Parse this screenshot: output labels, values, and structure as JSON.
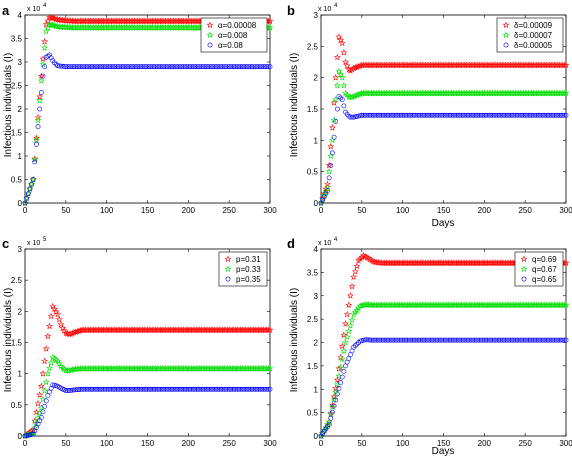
{
  "chart_data": [
    {
      "panel": "a",
      "type": "scatter",
      "xlabel": "",
      "ylabel": "Infectious individuals (I)",
      "xlim": [
        0,
        300
      ],
      "ylim": [
        0,
        40000
      ],
      "xticks": [
        0,
        50,
        100,
        150,
        200,
        250,
        300
      ],
      "yticks": [
        0,
        5000,
        10000,
        15000,
        20000,
        25000,
        30000,
        35000,
        40000
      ],
      "ytick_labels": [
        "0",
        "0.5",
        "1",
        "1.5",
        "2",
        "2.5",
        "3",
        "3.5",
        "4"
      ],
      "exponent_label": "x 10",
      "exponent_power": "4",
      "grid": false,
      "legend_position": "top-right",
      "marker_step": 2,
      "series": [
        {
          "name": "α=0.00008",
          "color": "#ff0000",
          "marker": "star",
          "x": [
            0,
            10,
            20,
            26,
            30,
            35,
            40,
            50,
            60,
            80,
            300
          ],
          "y": [
            0,
            5000,
            27000,
            38000,
            39500,
            39300,
            39000,
            38800,
            38700,
            38700,
            38700
          ]
        },
        {
          "name": "α=0.008",
          "color": "#00dd00",
          "marker": "star",
          "x": [
            0,
            10,
            20,
            26,
            30,
            35,
            40,
            50,
            60,
            80,
            300
          ],
          "y": [
            0,
            5000,
            26000,
            36500,
            38000,
            37800,
            37500,
            37400,
            37300,
            37300,
            37300
          ]
        },
        {
          "name": "α=0.08",
          "color": "#0000ff",
          "marker": "circle",
          "x": [
            0,
            10,
            18,
            22,
            26,
            30,
            35,
            40,
            50,
            60,
            80,
            300
          ],
          "y": [
            0,
            5000,
            20000,
            27000,
            31000,
            31500,
            30000,
            29200,
            29000,
            29000,
            29000,
            29000
          ]
        }
      ]
    },
    {
      "panel": "b",
      "type": "scatter",
      "xlabel": "Days",
      "ylabel": "Infectious individuals (I)",
      "xlim": [
        0,
        300
      ],
      "ylim": [
        0,
        30000
      ],
      "xticks": [
        0,
        50,
        100,
        150,
        200,
        250,
        300
      ],
      "yticks": [
        0,
        5000,
        10000,
        15000,
        20000,
        25000,
        30000
      ],
      "ytick_labels": [
        "0",
        "0.5",
        "1",
        "1.5",
        "2",
        "2.5",
        "3"
      ],
      "exponent_label": "x 10",
      "exponent_power": "4",
      "grid": false,
      "legend_position": "top-right",
      "marker_step": 2,
      "series": [
        {
          "name": "δ=0.00009",
          "color": "#ff0000",
          "marker": "star",
          "x": [
            0,
            8,
            14,
            18,
            22,
            26,
            30,
            35,
            40,
            50,
            60,
            300
          ],
          "y": [
            0,
            3000,
            12000,
            20000,
            26500,
            25500,
            22500,
            21000,
            21500,
            22000,
            22000,
            22000
          ]
        },
        {
          "name": "δ=0.00007",
          "color": "#00dd00",
          "marker": "star",
          "x": [
            0,
            8,
            14,
            18,
            22,
            26,
            30,
            35,
            40,
            50,
            60,
            300
          ],
          "y": [
            0,
            2500,
            10000,
            16500,
            21000,
            20000,
            17500,
            16800,
            17000,
            17500,
            17500,
            17500
          ]
        },
        {
          "name": "δ=0.00005",
          "color": "#0000ff",
          "marker": "circle",
          "x": [
            0,
            8,
            14,
            18,
            22,
            26,
            30,
            35,
            40,
            50,
            60,
            300
          ],
          "y": [
            0,
            2000,
            8000,
            13000,
            17000,
            16500,
            14500,
            13700,
            13700,
            14000,
            14000,
            14000
          ]
        }
      ]
    },
    {
      "panel": "c",
      "type": "scatter",
      "xlabel": "",
      "ylabel": "Infectious individuals (I)",
      "xlim": [
        0,
        300
      ],
      "ylim": [
        0,
        300000
      ],
      "xticks": [
        0,
        50,
        100,
        150,
        200,
        250,
        300
      ],
      "yticks": [
        0,
        50000,
        100000,
        150000,
        200000,
        250000,
        300000
      ],
      "ytick_labels": [
        "0",
        "0.5",
        "1",
        "1.5",
        "2",
        "2.5",
        "3"
      ],
      "exponent_label": "x 10",
      "exponent_power": "5",
      "grid": false,
      "legend_position": "top-right",
      "marker_step": 2,
      "series": [
        {
          "name": "p=0.31",
          "color": "#ff0000",
          "marker": "star",
          "x": [
            0,
            10,
            20,
            28,
            34,
            40,
            45,
            50,
            55,
            60,
            70,
            80,
            300
          ],
          "y": [
            0,
            10000,
            80000,
            160000,
            208000,
            195000,
            175000,
            165000,
            163000,
            166000,
            170000,
            170000,
            170000
          ]
        },
        {
          "name": "p=0.33",
          "color": "#00dd00",
          "marker": "star",
          "x": [
            0,
            10,
            20,
            28,
            34,
            40,
            45,
            50,
            55,
            60,
            70,
            80,
            300
          ],
          "y": [
            0,
            5000,
            45000,
            100000,
            126000,
            120000,
            110000,
            105000,
            105000,
            107000,
            108000,
            108000,
            108000
          ]
        },
        {
          "name": "p=0.35",
          "color": "#0000ff",
          "marker": "circle",
          "x": [
            0,
            10,
            20,
            28,
            34,
            40,
            45,
            50,
            55,
            60,
            70,
            80,
            300
          ],
          "y": [
            0,
            3000,
            30000,
            65000,
            82000,
            80000,
            76000,
            73000,
            73000,
            74000,
            75000,
            75000,
            75000
          ]
        }
      ]
    },
    {
      "panel": "d",
      "type": "scatter",
      "xlabel": "Days",
      "ylabel": "Infectious individuals (I)",
      "xlim": [
        0,
        300
      ],
      "ylim": [
        0,
        40000
      ],
      "xticks": [
        0,
        50,
        100,
        150,
        200,
        250,
        300
      ],
      "yticks": [
        0,
        5000,
        10000,
        15000,
        20000,
        25000,
        30000,
        35000,
        40000
      ],
      "ytick_labels": [
        "0",
        "0.5",
        "1",
        "1.5",
        "2",
        "2.5",
        "3",
        "3.5",
        "4"
      ],
      "exponent_label": "x 10",
      "exponent_power": "4",
      "grid": false,
      "legend_position": "top-right",
      "marker_step": 2,
      "series": [
        {
          "name": "q=0.69",
          "color": "#ff0000",
          "marker": "star",
          "x": [
            0,
            10,
            20,
            30,
            40,
            46,
            52,
            58,
            65,
            75,
            90,
            300
          ],
          "y": [
            0,
            3000,
            12000,
            24000,
            34000,
            37500,
            38600,
            38000,
            37200,
            37000,
            37000,
            37000
          ]
        },
        {
          "name": "q=0.67",
          "color": "#00dd00",
          "marker": "star",
          "x": [
            0,
            10,
            20,
            30,
            40,
            48,
            55,
            62,
            70,
            80,
            300
          ],
          "y": [
            0,
            3000,
            11000,
            20000,
            26000,
            27800,
            28100,
            28000,
            28000,
            28000,
            28000
          ]
        },
        {
          "name": "q=0.65",
          "color": "#0000ff",
          "marker": "circle",
          "x": [
            0,
            10,
            20,
            30,
            40,
            48,
            55,
            62,
            70,
            80,
            300
          ],
          "y": [
            0,
            2500,
            9000,
            15000,
            19000,
            20300,
            20600,
            20500,
            20500,
            20500,
            20500
          ]
        }
      ]
    }
  ]
}
